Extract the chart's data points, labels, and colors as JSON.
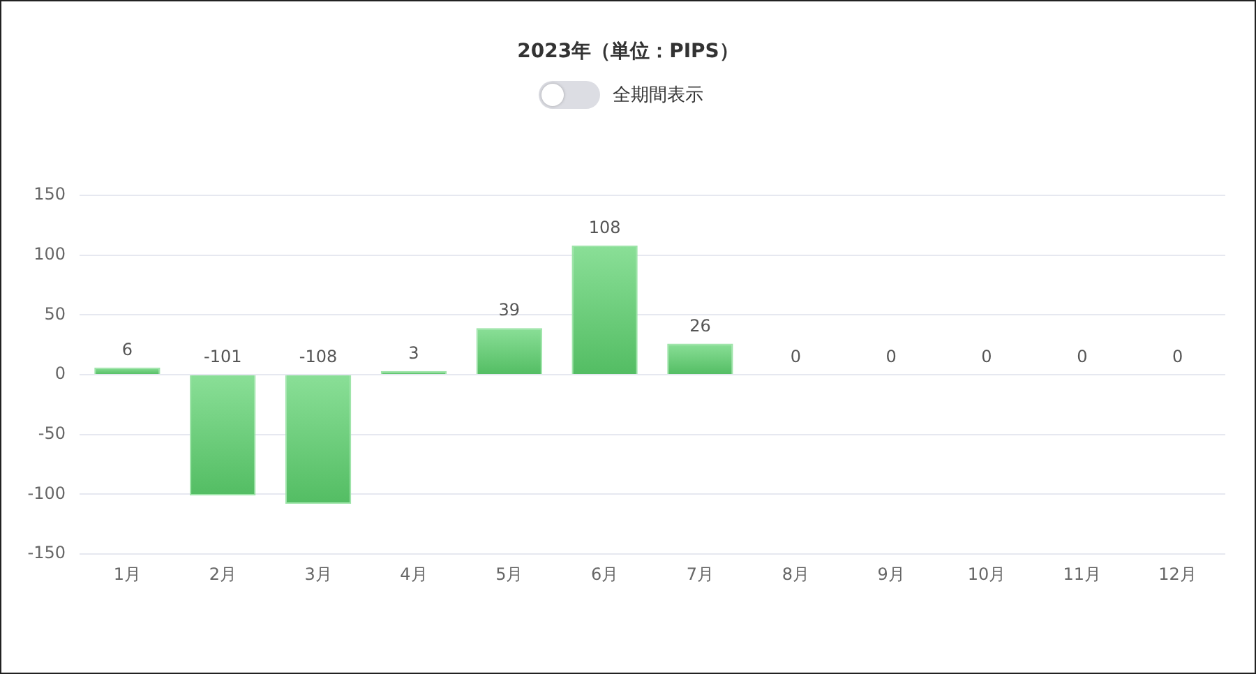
{
  "chart_data": {
    "type": "bar",
    "title": "2023年（単位：PIPS）",
    "annotations": [
      "全期間表示"
    ],
    "categories": [
      "1月",
      "2月",
      "3月",
      "4月",
      "5月",
      "6月",
      "7月",
      "8月",
      "9月",
      "10月",
      "11月",
      "12月"
    ],
    "values": [
      6,
      -101,
      -108,
      3,
      39,
      108,
      26,
      0,
      0,
      0,
      0,
      0
    ],
    "color": "#5cd26e",
    "ylim": [
      -150,
      150
    ],
    "yticks": [
      -150,
      -100,
      -50,
      0,
      50,
      100,
      150
    ],
    "grid": "y",
    "data_labels": true,
    "legend": false
  }
}
